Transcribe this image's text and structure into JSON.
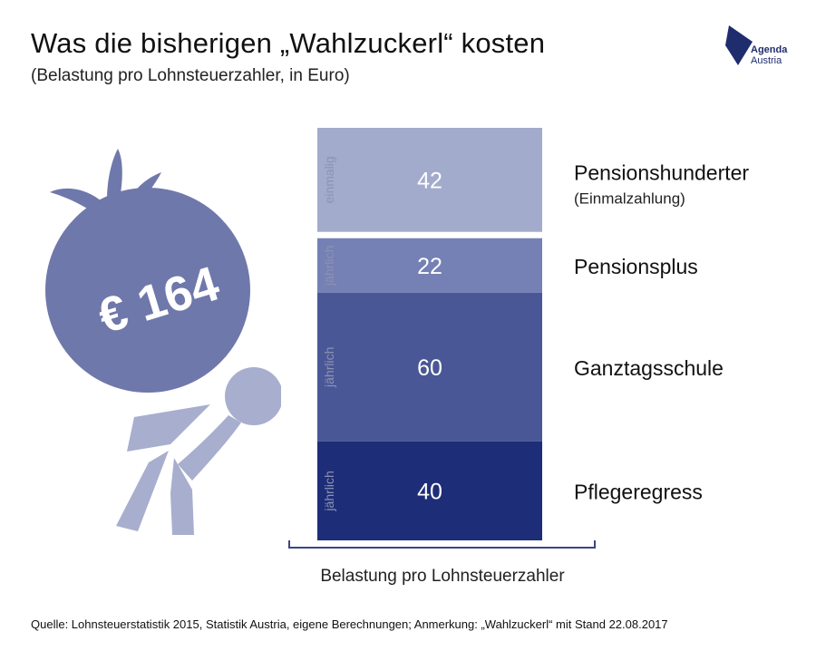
{
  "header": {
    "title": "Was die bisherigen „Wahlzuckerl“ kosten",
    "subtitle": "(Belastung pro Lohnsteuerzahler, in Euro)"
  },
  "logo": {
    "line1": "Agenda",
    "line2": "Austria"
  },
  "illustration": {
    "label": "€ 164",
    "icon": "person-carrying-money-bag-icon"
  },
  "colors": {
    "einmalig": "#a3abcc",
    "pensionsplus": "#7580b4",
    "ganztag": "#4a5797",
    "pflege": "#1e2d78",
    "text_dark": "#111111",
    "side_label": "#8c93b3"
  },
  "chart_data": {
    "type": "bar",
    "stacked": true,
    "xlabel": "Belastung pro Lohnsteuerzahler",
    "total": 164,
    "segments": [
      {
        "value": 42,
        "label": "Pensionshunderter",
        "sublabel": "(Einmalzahlung)",
        "side_label": "einmalig",
        "color": "#a3abcc"
      },
      {
        "value": 22,
        "label": "Pensionsplus",
        "sublabel": "",
        "side_label": "jährlich",
        "color": "#7580b4"
      },
      {
        "value": 60,
        "label": "Ganztagsschule",
        "sublabel": "",
        "side_label": "jährlich",
        "color": "#4a5797"
      },
      {
        "value": 40,
        "label": "Pflegeregress",
        "sublabel": "",
        "side_label": "jährlich",
        "color": "#1e2d78"
      }
    ]
  },
  "footer": {
    "source": "Quelle: Lohnsteuerstatistik 2015, Statistik Austria, eigene Berechnungen; Anmerkung: „Wahlzuckerl“ mit Stand 22.08.2017"
  }
}
